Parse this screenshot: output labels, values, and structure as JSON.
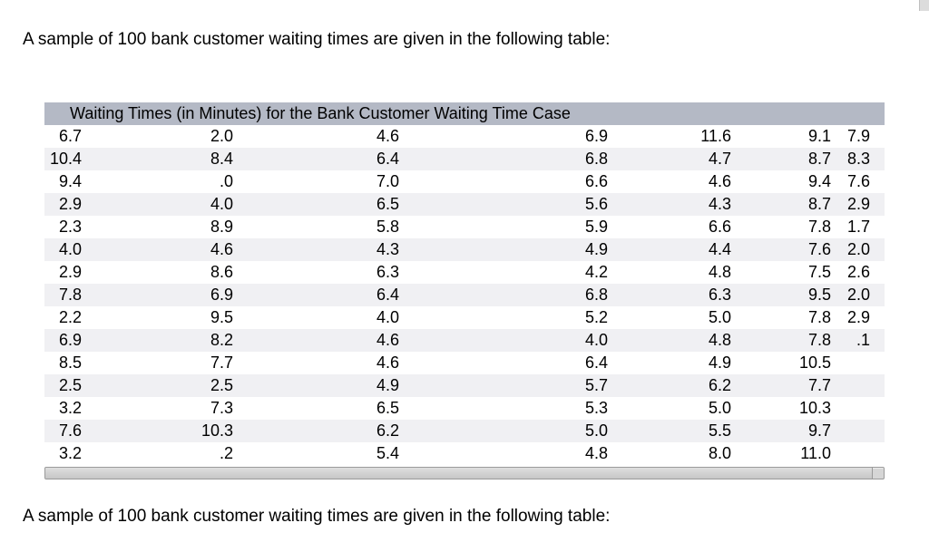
{
  "intro": {
    "text": "A sample of 100 bank customer waiting times are given in the following table:"
  },
  "outro": {
    "text": "A sample of 100 bank customer waiting times are given in the following table:"
  },
  "table": {
    "title": "Waiting Times (in Minutes) for the Bank Customer Waiting Time Case",
    "column_count": 7,
    "rows": [
      [
        "6.7",
        "2.0",
        "4.6",
        "6.9",
        "11.6",
        "9.1",
        "7.9"
      ],
      [
        "10.4",
        "8.4",
        "6.4",
        "6.8",
        "4.7",
        "8.7",
        "8.3"
      ],
      [
        "9.4",
        ".0",
        "7.0",
        "6.6",
        "4.6",
        "9.4",
        "7.6"
      ],
      [
        "2.9",
        "4.0",
        "6.5",
        "5.6",
        "4.3",
        "8.7",
        "2.9"
      ],
      [
        "2.3",
        "8.9",
        "5.8",
        "5.9",
        "6.6",
        "7.8",
        "1.7"
      ],
      [
        "4.0",
        "4.6",
        "4.3",
        "4.9",
        "4.4",
        "7.6",
        "2.0"
      ],
      [
        "2.9",
        "8.6",
        "6.3",
        "4.2",
        "4.8",
        "7.5",
        "2.6"
      ],
      [
        "7.8",
        "6.9",
        "6.4",
        "6.8",
        "6.3",
        "9.5",
        "2.0"
      ],
      [
        "2.2",
        "9.5",
        "4.0",
        "5.2",
        "5.0",
        "7.8",
        "2.9"
      ],
      [
        "6.9",
        "8.2",
        "4.6",
        "4.0",
        "4.8",
        "7.8",
        ".1"
      ],
      [
        "8.5",
        "7.7",
        "4.6",
        "6.4",
        "4.9",
        "10.5",
        ""
      ],
      [
        "2.5",
        "2.5",
        "4.9",
        "5.7",
        "6.2",
        "7.7",
        ""
      ],
      [
        "3.2",
        "7.3",
        "6.5",
        "5.3",
        "5.0",
        "10.3",
        ""
      ],
      [
        "7.6",
        "10.3",
        "6.2",
        "5.0",
        "5.5",
        "9.7",
        ""
      ],
      [
        "3.2",
        ".2",
        "5.4",
        "4.8",
        "8.0",
        "11.0",
        ""
      ]
    ],
    "colors": {
      "header_bg": "#b4b9c5",
      "stripe_bg": "#f0f0f3",
      "scrollbar_track": "#d6d6d6",
      "scrollbar_border": "#9a9a9a"
    }
  }
}
